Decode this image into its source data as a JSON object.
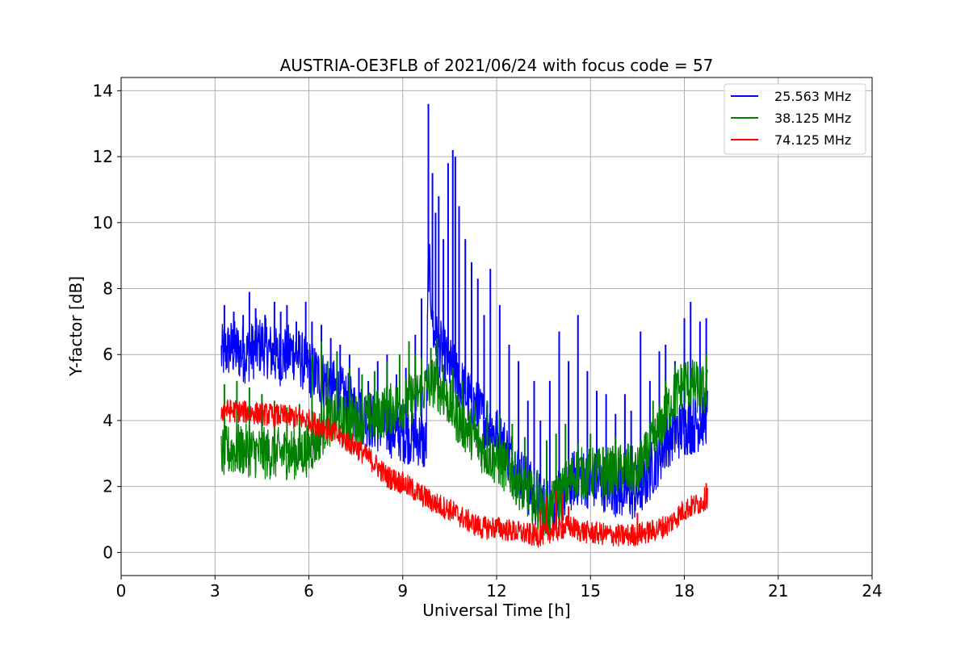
{
  "chart_data": {
    "type": "line",
    "title": "AUSTRIA-OE3FLB of 2021/06/24 with focus code = 57",
    "xlabel": "Universal Time [h]",
    "ylabel": "Y-factor [dB]",
    "xlim": [
      0,
      24
    ],
    "ylim": [
      -0.7,
      14.4
    ],
    "xticks": [
      0,
      3,
      6,
      9,
      12,
      15,
      18,
      21,
      24
    ],
    "yticks": [
      0,
      2,
      4,
      6,
      8,
      10,
      12,
      14
    ],
    "grid": true,
    "legend_position": "top-right",
    "series": [
      {
        "name": "25.563 MHz",
        "color": "#0000ff",
        "x": [
          3.2,
          3.5,
          4.0,
          4.5,
          5.0,
          5.5,
          6.0,
          6.5,
          7.0,
          7.5,
          8.0,
          8.5,
          9.0,
          9.5,
          9.75,
          9.82,
          10.0,
          10.3,
          10.6,
          11.0,
          11.4,
          11.8,
          12.2,
          12.6,
          13.0,
          13.3,
          13.6,
          13.9,
          14.2,
          14.5,
          15.0,
          15.5,
          16.0,
          16.5,
          17.0,
          17.5,
          18.0,
          18.4,
          18.75
        ],
        "y": [
          6.0,
          6.2,
          6.0,
          6.3,
          5.9,
          6.1,
          5.6,
          5.2,
          4.8,
          4.3,
          4.0,
          3.8,
          3.6,
          3.5,
          3.2,
          9.0,
          6.5,
          6.0,
          5.5,
          4.8,
          4.3,
          3.8,
          3.3,
          2.6,
          2.0,
          1.6,
          1.4,
          1.5,
          1.8,
          2.3,
          2.2,
          2.1,
          1.9,
          1.8,
          2.6,
          3.5,
          3.8,
          3.9,
          4.2
        ]
      },
      {
        "name": "38.125 MHz",
        "color": "#008000",
        "x": [
          3.2,
          3.5,
          4.0,
          4.5,
          5.0,
          5.5,
          6.0,
          6.3,
          6.6,
          7.0,
          7.5,
          8.0,
          8.5,
          9.0,
          9.5,
          10.0,
          10.4,
          10.8,
          11.2,
          11.6,
          12.0,
          12.4,
          12.8,
          13.2,
          13.6,
          14.0,
          14.5,
          15.0,
          15.5,
          16.0,
          16.5,
          17.0,
          17.5,
          18.0,
          18.4,
          18.75
        ],
        "y": [
          3.0,
          3.1,
          3.1,
          3.0,
          3.0,
          3.0,
          3.1,
          3.5,
          4.0,
          4.0,
          4.0,
          4.1,
          4.3,
          4.5,
          4.8,
          5.2,
          4.7,
          4.0,
          3.6,
          3.1,
          2.8,
          2.5,
          2.0,
          1.6,
          1.1,
          1.7,
          2.4,
          2.4,
          2.4,
          2.5,
          2.4,
          3.3,
          4.4,
          5.2,
          5.0,
          4.8
        ]
      },
      {
        "name": "74.125 MHz",
        "color": "#ff0000",
        "x": [
          3.2,
          3.5,
          4.0,
          4.5,
          5.0,
          5.5,
          6.0,
          6.5,
          7.0,
          7.5,
          8.0,
          8.5,
          9.0,
          9.5,
          10.0,
          10.5,
          11.0,
          11.5,
          12.0,
          12.5,
          13.0,
          13.3,
          13.6,
          14.0,
          14.3,
          14.7,
          15.0,
          15.5,
          16.0,
          16.5,
          17.0,
          17.5,
          18.0,
          18.5,
          18.75
        ],
        "y": [
          4.3,
          4.3,
          4.25,
          4.2,
          4.15,
          4.1,
          4.0,
          3.8,
          3.5,
          3.2,
          2.8,
          2.3,
          2.1,
          1.8,
          1.5,
          1.3,
          1.0,
          0.75,
          0.75,
          0.65,
          0.55,
          0.5,
          0.6,
          0.7,
          0.8,
          0.65,
          0.6,
          0.55,
          0.5,
          0.55,
          0.65,
          0.85,
          1.3,
          1.5,
          1.7
        ]
      }
    ],
    "spikes": [
      {
        "series": 0,
        "x": [
          3.3,
          3.6,
          3.9,
          4.1,
          4.3,
          4.6,
          4.9,
          5.1,
          5.3,
          5.6,
          5.9,
          6.1,
          6.4,
          6.7,
          7.0,
          7.3,
          7.6,
          7.9,
          8.2,
          8.5,
          8.8,
          9.1,
          9.4,
          9.6,
          9.82,
          9.95,
          10.05,
          10.15,
          10.3,
          10.45,
          10.6,
          10.68,
          10.8,
          11.0,
          11.2,
          11.4,
          11.6,
          11.8,
          12.1,
          12.4,
          12.7,
          13.0,
          13.2,
          13.4,
          13.7,
          14.0,
          14.3,
          14.6,
          14.9,
          15.2,
          15.5,
          15.8,
          16.1,
          16.3,
          16.6,
          16.9,
          17.2,
          17.4,
          17.7,
          18.0,
          18.2,
          18.5,
          18.7
        ],
        "y": [
          7.5,
          7.3,
          7.2,
          7.9,
          7.4,
          7.2,
          7.6,
          7.3,
          7.5,
          7.0,
          7.6,
          7.0,
          6.9,
          6.5,
          6.3,
          6.0,
          5.6,
          5.2,
          5.8,
          6.0,
          5.4,
          5.6,
          6.6,
          7.7,
          13.6,
          11.5,
          10.3,
          10.8,
          9.5,
          11.8,
          12.2,
          12.0,
          10.5,
          9.5,
          8.8,
          8.3,
          7.2,
          8.6,
          7.5,
          6.3,
          5.8,
          4.6,
          5.2,
          4.0,
          5.2,
          6.7,
          5.8,
          7.2,
          5.5,
          4.9,
          4.8,
          4.2,
          4.8,
          4.3,
          6.7,
          5.2,
          6.1,
          6.3,
          5.8,
          7.1,
          7.6,
          7.0,
          7.1
        ]
      },
      {
        "series": 1,
        "x": [
          3.3,
          3.7,
          4.1,
          4.5,
          4.9,
          5.3,
          5.7,
          6.1,
          6.4,
          6.6,
          6.9,
          7.3,
          7.7,
          8.1,
          8.5,
          8.9,
          9.2,
          9.4,
          9.6,
          9.9,
          10.1,
          10.3,
          10.6,
          10.9,
          11.3,
          11.7,
          12.1,
          12.5,
          12.9,
          13.3,
          13.6,
          13.9,
          14.2,
          14.6,
          15.0,
          15.4,
          15.8,
          16.2,
          16.6,
          17.0,
          17.4,
          17.7,
          18.0,
          18.3,
          18.7
        ],
        "y": [
          5.1,
          5.2,
          5.0,
          4.8,
          4.6,
          4.4,
          4.5,
          6.0,
          6.4,
          5.8,
          6.1,
          5.6,
          5.4,
          5.5,
          5.8,
          6.0,
          6.4,
          6.0,
          5.9,
          6.2,
          6.5,
          5.7,
          5.6,
          5.2,
          4.6,
          4.6,
          4.2,
          3.9,
          3.5,
          2.5,
          3.4,
          3.6,
          3.9,
          3.3,
          3.6,
          3.2,
          3.5,
          3.3,
          3.4,
          4.6,
          5.2,
          5.7,
          5.5,
          5.3,
          6.0
        ]
      },
      {
        "series": 2,
        "x": [
          3.3,
          3.5,
          6.0,
          9.0,
          13.4,
          13.6,
          13.9,
          14.1,
          14.3,
          16.5,
          18.7
        ],
        "y": [
          4.5,
          4.6,
          4.1,
          2.4,
          1.3,
          1.7,
          1.9,
          1.8,
          1.4,
          1.2,
          2.1
        ]
      }
    ],
    "noise_amplitude": [
      0.9,
      0.8,
      0.35
    ]
  }
}
